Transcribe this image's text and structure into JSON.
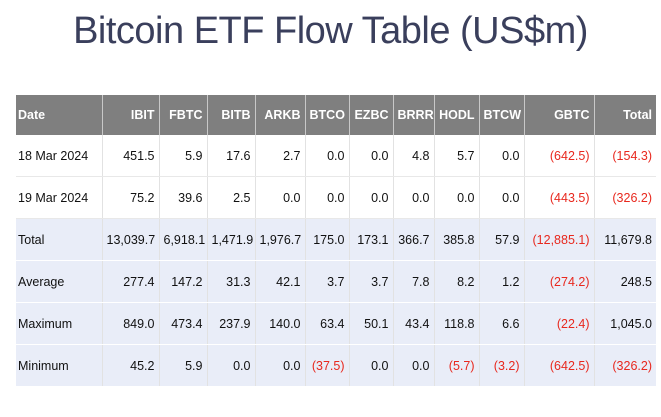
{
  "title": "Bitcoin ETF Flow Table (US$m)",
  "colors": {
    "header_bg": "#7f7f7f",
    "summary_bg": "#e9edf8",
    "negative": "#e8281e",
    "title": "#3a3f5c"
  },
  "table": {
    "headers": [
      "Date",
      "IBIT",
      "FBTC",
      "BITB",
      "ARKB",
      "BTCO",
      "EZBC",
      "BRRR",
      "HODL",
      "BTCW",
      "GBTC",
      "Total"
    ],
    "rows": [
      {
        "label": "18 Mar 2024",
        "cells": [
          "451.5",
          "5.9",
          "17.6",
          "2.7",
          "0.0",
          "0.0",
          "4.8",
          "5.7",
          "0.0",
          "(642.5)",
          "(154.3)"
        ]
      },
      {
        "label": "19 Mar 2024",
        "cells": [
          "75.2",
          "39.6",
          "2.5",
          "0.0",
          "0.0",
          "0.0",
          "0.0",
          "0.0",
          "0.0",
          "(443.5)",
          "(326.2)"
        ]
      }
    ],
    "summary": [
      {
        "label": "Total",
        "cells": [
          "13,039.7",
          "6,918.1",
          "1,471.9",
          "1,976.7",
          "175.0",
          "173.1",
          "366.7",
          "385.8",
          "57.9",
          "(12,885.1)",
          "11,679.8"
        ]
      },
      {
        "label": "Average",
        "cells": [
          "277.4",
          "147.2",
          "31.3",
          "42.1",
          "3.7",
          "3.7",
          "7.8",
          "8.2",
          "1.2",
          "(274.2)",
          "248.5"
        ]
      },
      {
        "label": "Maximum",
        "cells": [
          "849.0",
          "473.4",
          "237.9",
          "140.0",
          "63.4",
          "50.1",
          "43.4",
          "118.8",
          "6.6",
          "(22.4)",
          "1,045.0"
        ]
      },
      {
        "label": "Minimum",
        "cells": [
          "45.2",
          "5.9",
          "0.0",
          "0.0",
          "(37.5)",
          "0.0",
          "0.0",
          "(5.7)",
          "(3.2)",
          "(642.5)",
          "(326.2)"
        ]
      }
    ]
  }
}
